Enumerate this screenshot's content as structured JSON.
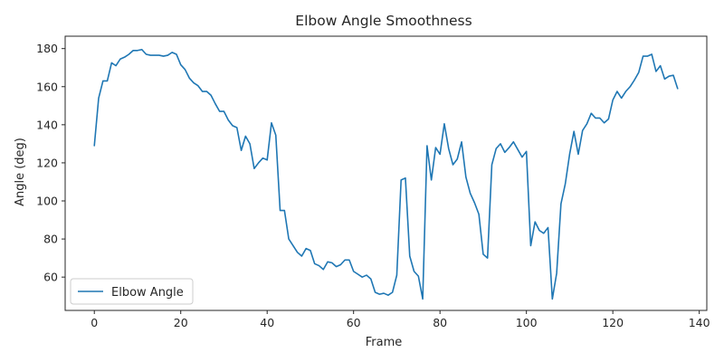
{
  "chart_data": {
    "type": "line",
    "title": "Elbow Angle Smoothness",
    "xlabel": "Frame",
    "ylabel": "Angle (deg)",
    "xlim": [
      -6.75,
      141.75
    ],
    "ylim": [
      42.5,
      186.5
    ],
    "xticks": [
      0,
      20,
      40,
      60,
      80,
      100,
      120,
      140
    ],
    "yticks": [
      60,
      80,
      100,
      120,
      140,
      160,
      180
    ],
    "legend_position": "lower-left",
    "grid": false,
    "series": [
      {
        "name": "Elbow Angle",
        "color": "#1f77b4",
        "x": [
          0,
          1,
          2,
          3,
          4,
          5,
          6,
          7,
          8,
          9,
          10,
          11,
          12,
          13,
          14,
          15,
          16,
          17,
          18,
          19,
          20,
          21,
          22,
          23,
          24,
          25,
          26,
          27,
          28,
          29,
          30,
          31,
          32,
          33,
          34,
          35,
          36,
          37,
          38,
          39,
          40,
          41,
          42,
          43,
          44,
          45,
          46,
          47,
          48,
          49,
          50,
          51,
          52,
          53,
          54,
          55,
          56,
          57,
          58,
          59,
          60,
          61,
          62,
          63,
          64,
          65,
          66,
          67,
          68,
          69,
          70,
          71,
          72,
          73,
          74,
          75,
          76,
          77,
          78,
          79,
          80,
          81,
          82,
          83,
          84,
          85,
          86,
          87,
          88,
          89,
          90,
          91,
          92,
          93,
          94,
          95,
          96,
          97,
          98,
          99,
          100,
          101,
          102,
          103,
          104,
          105,
          106,
          107,
          108,
          109,
          110,
          111,
          112,
          113,
          114,
          115,
          116,
          117,
          118,
          119,
          120,
          121,
          122,
          123,
          124,
          125,
          126,
          127,
          128,
          129,
          130,
          131,
          132,
          133,
          134,
          135
        ],
        "values": [
          129,
          154,
          163,
          163,
          172.5,
          171,
          174.5,
          175.5,
          177,
          179,
          179,
          179.5,
          177,
          176.5,
          176.5,
          176.5,
          176,
          176.5,
          178,
          177,
          171.5,
          169,
          164.5,
          162,
          160.5,
          157.5,
          157.5,
          155.5,
          151,
          147,
          147,
          142.5,
          139.5,
          138.5,
          126.5,
          134,
          130,
          117,
          120,
          122.5,
          121.5,
          141,
          134.5,
          95,
          95,
          80,
          76.5,
          73,
          71,
          75,
          74,
          67,
          66,
          64,
          68,
          67.5,
          65.5,
          66.5,
          69,
          69,
          63,
          61.5,
          60,
          61,
          59,
          52,
          51,
          51.5,
          50.5,
          52,
          61,
          111,
          112,
          71,
          63,
          60.5,
          48.5,
          129,
          111,
          128,
          124.5,
          140.5,
          127.5,
          119,
          122,
          131,
          112.5,
          104,
          99,
          93,
          72,
          70,
          119,
          127.5,
          130,
          125.5,
          128,
          131,
          127,
          123,
          126,
          76.5,
          89,
          84.5,
          83,
          86,
          48.5,
          62,
          98.5,
          109,
          124.5,
          136.5,
          124.5,
          137,
          140.5,
          146,
          143.5,
          143.5,
          141,
          143,
          153,
          157.5,
          154,
          157.5,
          160,
          163.5,
          167.5,
          176,
          176,
          177,
          168,
          171,
          164,
          165.5,
          166,
          159
        ]
      }
    ]
  }
}
